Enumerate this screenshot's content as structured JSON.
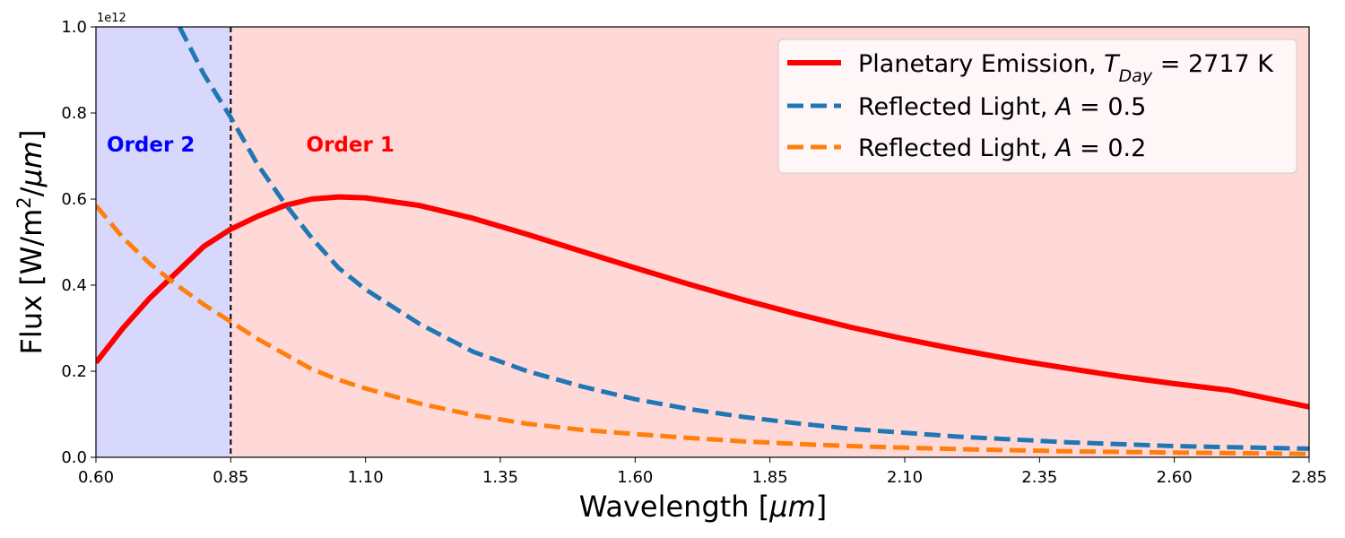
{
  "chart_data": {
    "type": "line",
    "xlabel_prefix": "Wavelength [",
    "xlabel_unit": "μm",
    "xlabel_suffix": "]",
    "ylabel_prefix": "Flux [W/m",
    "ylabel_sup": "2",
    "ylabel_sep": "/",
    "ylabel_unit": "μm",
    "ylabel_suffix": "]",
    "y_multiplier": "1e12",
    "xlim": [
      0.6,
      2.85
    ],
    "ylim": [
      0.0,
      1.0
    ],
    "x_ticks": [
      0.6,
      0.85,
      1.1,
      1.35,
      1.6,
      1.85,
      2.1,
      2.35,
      2.6,
      2.85
    ],
    "x_tick_labels": [
      "0.60",
      "0.85",
      "1.10",
      "1.35",
      "1.60",
      "1.85",
      "2.10",
      "2.35",
      "2.60",
      "2.85"
    ],
    "y_ticks": [
      0.0,
      0.2,
      0.4,
      0.6,
      0.8,
      1.0
    ],
    "y_tick_labels": [
      "0.0",
      "0.2",
      "0.4",
      "0.6",
      "0.8",
      "1.0"
    ],
    "regions": [
      {
        "label": "Order 2",
        "x_range": [
          0.6,
          0.85
        ],
        "fill": "#d8d8fc",
        "label_color": "#0000ff",
        "label_x": 0.62,
        "label_y": 0.71
      },
      {
        "label": "Order 1",
        "x_range": [
          0.85,
          2.85
        ],
        "fill": "#ffd8d8",
        "label_color": "#ff0000",
        "label_x": 0.99,
        "label_y": 0.71
      }
    ],
    "divider_x": 0.85,
    "legend_position": "top-right",
    "series": [
      {
        "label_parts": [
          "Planetary Emission, ",
          "T",
          "Day",
          " = 2717 K"
        ],
        "color": "#ff0000",
        "style": "solid",
        "x": [
          0.6,
          0.65,
          0.7,
          0.75,
          0.8,
          0.85,
          0.9,
          0.95,
          1.0,
          1.05,
          1.1,
          1.2,
          1.3,
          1.4,
          1.5,
          1.6,
          1.7,
          1.8,
          1.9,
          2.0,
          2.1,
          2.2,
          2.3,
          2.4,
          2.5,
          2.6,
          2.7,
          2.85
        ],
        "y": [
          0.22,
          0.3,
          0.37,
          0.43,
          0.49,
          0.53,
          0.56,
          0.585,
          0.6,
          0.605,
          0.603,
          0.585,
          0.555,
          0.518,
          0.479,
          0.44,
          0.402,
          0.366,
          0.333,
          0.302,
          0.275,
          0.25,
          0.227,
          0.207,
          0.188,
          0.171,
          0.156,
          0.117
        ]
      },
      {
        "label_parts": [
          "Reflected Light, ",
          "A",
          "",
          " =  0.5"
        ],
        "color": "#1f77b4",
        "style": "dashed",
        "x": [
          0.755,
          0.8,
          0.85,
          0.9,
          0.95,
          1.0,
          1.05,
          1.1,
          1.2,
          1.3,
          1.4,
          1.5,
          1.6,
          1.7,
          1.8,
          1.9,
          2.0,
          2.2,
          2.4,
          2.6,
          2.85
        ],
        "y": [
          1.0,
          0.89,
          0.79,
          0.68,
          0.59,
          0.51,
          0.44,
          0.39,
          0.31,
          0.245,
          0.2,
          0.165,
          0.135,
          0.112,
          0.094,
          0.079,
          0.066,
          0.048,
          0.035,
          0.026,
          0.02
        ]
      },
      {
        "label_parts": [
          "Reflected Light, ",
          "A",
          "",
          " =  0.2"
        ],
        "color": "#ff7f0e",
        "style": "dashed",
        "x": [
          0.6,
          0.65,
          0.7,
          0.75,
          0.8,
          0.85,
          0.9,
          0.95,
          1.0,
          1.05,
          1.1,
          1.2,
          1.3,
          1.4,
          1.5,
          1.6,
          1.7,
          1.8,
          1.9,
          2.0,
          2.2,
          2.4,
          2.6,
          2.85
        ],
        "y": [
          0.585,
          0.51,
          0.45,
          0.4,
          0.355,
          0.315,
          0.275,
          0.24,
          0.205,
          0.18,
          0.16,
          0.125,
          0.098,
          0.078,
          0.064,
          0.054,
          0.045,
          0.037,
          0.031,
          0.026,
          0.019,
          0.014,
          0.011,
          0.008
        ]
      }
    ]
  }
}
